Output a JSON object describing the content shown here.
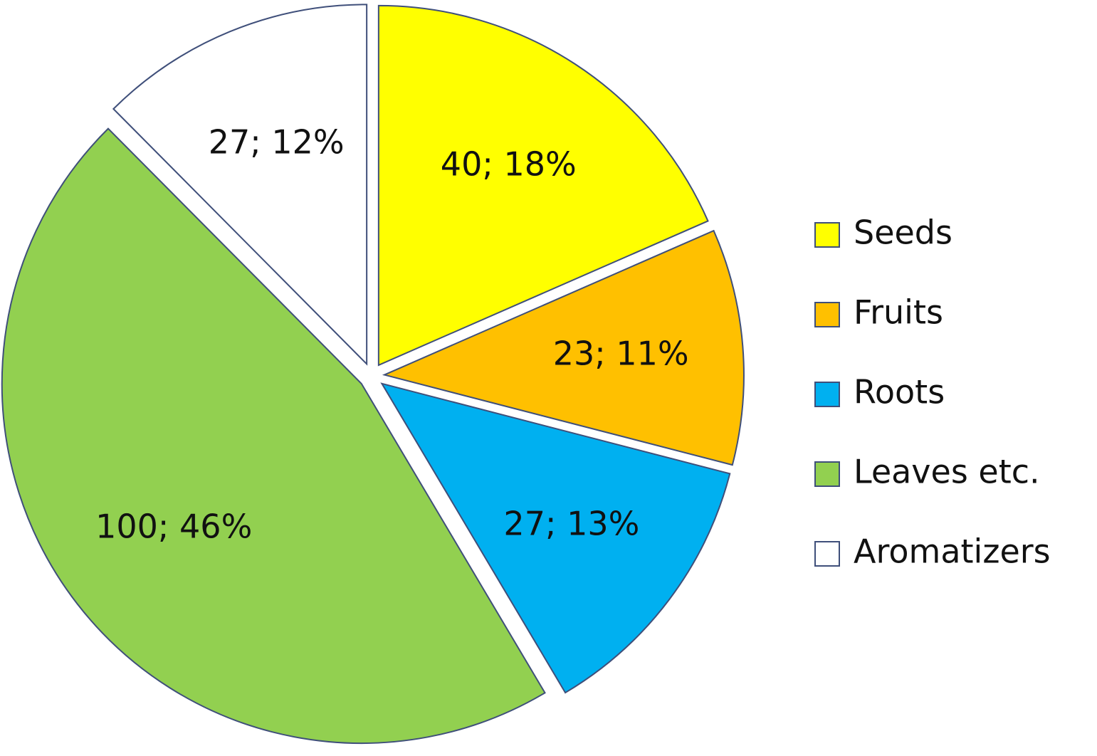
{
  "chart_data": {
    "type": "pie",
    "title": "",
    "categories": [
      "Seeds",
      "Fruits",
      "Roots",
      "Leaves etc.",
      "Aromatizers"
    ],
    "values": [
      40,
      23,
      27,
      100,
      27
    ],
    "percentages": [
      18,
      11,
      13,
      46,
      12
    ],
    "labels": [
      "40; 18%",
      "23; 11%",
      "27; 13%",
      "100; 46%",
      "27; 12%"
    ],
    "colors": [
      "#ffff00",
      "#ffc000",
      "#00b0f0",
      "#92d050",
      "#ffffff"
    ],
    "exploded": true,
    "start_angle": "12 o'clock, clockwise",
    "legend_position": "right"
  }
}
